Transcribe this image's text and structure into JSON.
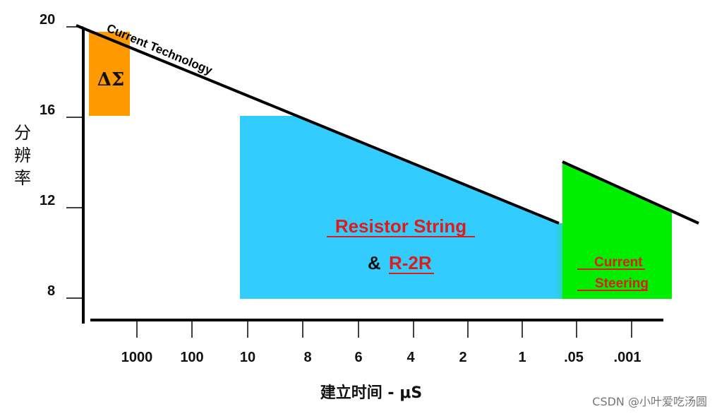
{
  "diagram": {
    "y_axis": {
      "label_chars": [
        "分",
        "辨",
        "率"
      ],
      "ticks": [
        "20",
        "16",
        "12",
        "8"
      ]
    },
    "x_axis": {
      "label": "建立时间 - μS",
      "ticks": [
        "1000",
        "100",
        "10",
        "8",
        "6",
        "4",
        "2",
        "1",
        ".05",
        ".001"
      ]
    },
    "trend_line_label": "Current Technology",
    "regions": {
      "delta_sigma": {
        "label": "ΔΣ",
        "color": "#ff9900"
      },
      "resistor": {
        "label_line1": "Resistor String",
        "label_line2_prefix": "& ",
        "label_line2": "R-2R",
        "color": "#33ccff",
        "text_color": "#e01b1b"
      },
      "current_steering": {
        "label_line1": "Current",
        "label_line2": "Steering",
        "color": "#00ee00",
        "text_color": "#e01b1b"
      }
    },
    "watermark": "CSDN @小叶爱吃汤圆"
  }
}
